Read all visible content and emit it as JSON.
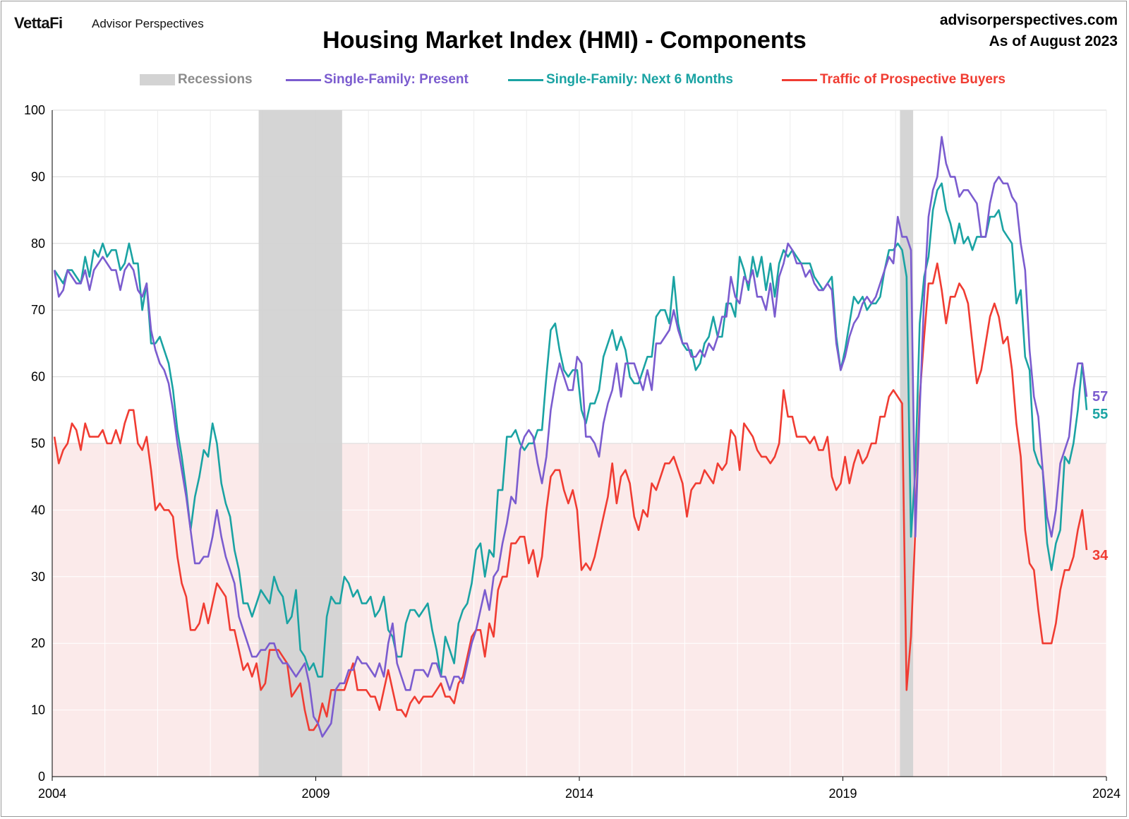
{
  "header": {
    "logo": "VettaFi",
    "logo_sub": "Advisor Perspectives",
    "site": "advisorperspectives.com",
    "as_of": "As of August 2023"
  },
  "chart_data": {
    "type": "line",
    "title": "Housing Market Index (HMI) - Components",
    "xlabel": "",
    "ylabel": "",
    "ylim": [
      0,
      100
    ],
    "yticks": [
      0,
      10,
      20,
      30,
      40,
      50,
      60,
      70,
      80,
      90,
      100
    ],
    "xticks": [
      "2004",
      "2009",
      "2014",
      "2019",
      "2024"
    ],
    "x_start": "2004-01",
    "x_end": "2023-08",
    "frequency": "monthly",
    "shaded_below": 50,
    "legend_position": "top",
    "recessions": {
      "label": "Recessions",
      "color": "#d3d3d3",
      "periods": [
        [
          "2007-12",
          "2009-06"
        ],
        [
          "2020-02",
          "2020-04"
        ]
      ]
    },
    "series": [
      {
        "name": "Single-Family: Present",
        "color": "#7b5ccf",
        "last_label": "57",
        "values": [
          76,
          72,
          73,
          76,
          75,
          74,
          74,
          76,
          73,
          76,
          77,
          78,
          77,
          76,
          76,
          73,
          76,
          77,
          76,
          73,
          72,
          74,
          67,
          64,
          62,
          61,
          59,
          55,
          50,
          46,
          42,
          37,
          32,
          32,
          33,
          33,
          36,
          40,
          36,
          33,
          31,
          29,
          24,
          22,
          20,
          18,
          18,
          19,
          19,
          20,
          20,
          18,
          17,
          17,
          16,
          15,
          16,
          17,
          14,
          9,
          8,
          6,
          7,
          8,
          13,
          14,
          14,
          16,
          16,
          18,
          17,
          17,
          16,
          15,
          17,
          15,
          20,
          23,
          17,
          15,
          13,
          13,
          16,
          16,
          16,
          15,
          17,
          17,
          15,
          15,
          13,
          15,
          15,
          14,
          17,
          20,
          22,
          25,
          28,
          25,
          30,
          31,
          35,
          38,
          42,
          41,
          49,
          51,
          52,
          51,
          47,
          44,
          48,
          55,
          59,
          62,
          60,
          58,
          58,
          63,
          62,
          51,
          51,
          50,
          48,
          53,
          56,
          58,
          62,
          57,
          62,
          62,
          62,
          60,
          58,
          61,
          58,
          65,
          65,
          66,
          67,
          70,
          67,
          65,
          65,
          63,
          63,
          64,
          63,
          65,
          64,
          66,
          69,
          69,
          75,
          72,
          71,
          75,
          74,
          76,
          72,
          72,
          70,
          74,
          69,
          75,
          77,
          80,
          79,
          77,
          77,
          75,
          76,
          74,
          73,
          73,
          74,
          73,
          65,
          61,
          63,
          66,
          68,
          69,
          71,
          72,
          71,
          72,
          74,
          76,
          78,
          77,
          84,
          81,
          81,
          79,
          36,
          55,
          72,
          84,
          88,
          90,
          96,
          92,
          90,
          90,
          87,
          88,
          88,
          87,
          86,
          81,
          81,
          86,
          89,
          90,
          89,
          89,
          87,
          86,
          80,
          76,
          64,
          57,
          54,
          46,
          39,
          36,
          40,
          47,
          49,
          51,
          58,
          62,
          62,
          57
        ]
      },
      {
        "name": "Single-Family: Next 6 Months",
        "color": "#1aa3a3",
        "last_label": "55",
        "values": [
          76,
          75,
          74,
          76,
          76,
          75,
          74,
          78,
          75,
          79,
          78,
          80,
          78,
          79,
          79,
          76,
          77,
          80,
          77,
          77,
          70,
          74,
          65,
          65,
          66,
          64,
          62,
          58,
          52,
          48,
          43,
          37,
          42,
          45,
          49,
          48,
          53,
          50,
          44,
          41,
          39,
          34,
          31,
          26,
          26,
          24,
          26,
          28,
          27,
          26,
          30,
          28,
          27,
          23,
          24,
          28,
          19,
          18,
          16,
          17,
          15,
          15,
          24,
          27,
          26,
          26,
          30,
          29,
          27,
          28,
          26,
          26,
          27,
          24,
          25,
          27,
          22,
          21,
          18,
          18,
          23,
          25,
          25,
          24,
          25,
          26,
          22,
          19,
          15,
          21,
          19,
          17,
          23,
          25,
          26,
          29,
          34,
          35,
          30,
          34,
          33,
          43,
          43,
          51,
          51,
          52,
          50,
          49,
          50,
          50,
          52,
          52,
          60,
          67,
          68,
          64,
          61,
          60,
          61,
          61,
          55,
          53,
          56,
          56,
          58,
          63,
          65,
          67,
          64,
          66,
          64,
          60,
          59,
          59,
          61,
          63,
          63,
          69,
          70,
          70,
          68,
          75,
          68,
          65,
          64,
          64,
          61,
          62,
          65,
          66,
          69,
          66,
          66,
          71,
          71,
          69,
          78,
          76,
          73,
          78,
          75,
          78,
          73,
          77,
          72,
          77,
          79,
          78,
          79,
          78,
          77,
          77,
          77,
          75,
          74,
          73,
          74,
          75,
          66,
          61,
          64,
          68,
          72,
          71,
          72,
          70,
          71,
          71,
          72,
          76,
          79,
          79,
          80,
          79,
          75,
          36,
          46,
          68,
          75,
          78,
          85,
          88,
          89,
          85,
          83,
          80,
          83,
          80,
          81,
          79,
          81,
          81,
          81,
          84,
          84,
          85,
          82,
          81,
          80,
          71,
          73,
          63,
          61,
          49,
          47,
          46,
          35,
          31,
          35,
          37,
          48,
          47,
          50,
          55,
          62,
          55
        ]
      },
      {
        "name": "Traffic of Prospective Buyers",
        "color": "#f03c32",
        "last_label": "34",
        "values": [
          51,
          47,
          49,
          50,
          53,
          52,
          49,
          53,
          51,
          51,
          51,
          52,
          50,
          50,
          52,
          50,
          53,
          55,
          55,
          50,
          49,
          51,
          46,
          40,
          41,
          40,
          40,
          39,
          33,
          29,
          27,
          22,
          22,
          23,
          26,
          23,
          26,
          29,
          28,
          27,
          22,
          22,
          19,
          16,
          17,
          15,
          17,
          13,
          14,
          19,
          19,
          19,
          18,
          17,
          12,
          13,
          14,
          10,
          7,
          7,
          8,
          11,
          9,
          13,
          13,
          13,
          13,
          15,
          17,
          13,
          13,
          13,
          12,
          12,
          10,
          13,
          16,
          13,
          10,
          10,
          9,
          11,
          12,
          11,
          12,
          12,
          12,
          13,
          14,
          12,
          12,
          11,
          14,
          15,
          18,
          21,
          22,
          22,
          18,
          23,
          21,
          28,
          30,
          30,
          35,
          35,
          36,
          36,
          32,
          34,
          30,
          33,
          40,
          45,
          46,
          46,
          43,
          41,
          43,
          40,
          31,
          32,
          31,
          33,
          36,
          39,
          42,
          47,
          41,
          45,
          46,
          44,
          39,
          37,
          40,
          39,
          44,
          43,
          45,
          47,
          47,
          48,
          46,
          44,
          39,
          43,
          44,
          44,
          46,
          45,
          44,
          47,
          46,
          47,
          52,
          51,
          46,
          53,
          52,
          51,
          49,
          48,
          48,
          47,
          48,
          50,
          58,
          54,
          54,
          51,
          51,
          51,
          50,
          51,
          49,
          49,
          51,
          45,
          43,
          44,
          48,
          44,
          47,
          49,
          47,
          48,
          50,
          50,
          54,
          54,
          57,
          58,
          57,
          56,
          13,
          21,
          37,
          57,
          66,
          74,
          74,
          77,
          73,
          68,
          72,
          72,
          74,
          73,
          71,
          65,
          59,
          61,
          65,
          69,
          71,
          69,
          65,
          66,
          61,
          53,
          48,
          37,
          32,
          31,
          25,
          20,
          20,
          20,
          23,
          28,
          31,
          31,
          33,
          37,
          40,
          34
        ]
      }
    ]
  }
}
